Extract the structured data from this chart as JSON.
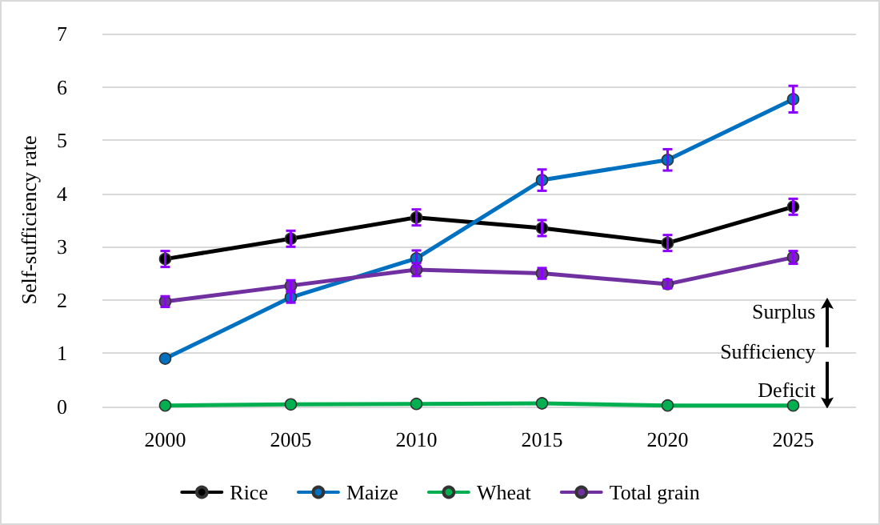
{
  "chart_data": {
    "type": "line",
    "ylabel": "Self-sufficiency rate",
    "categories": [
      "2000",
      "2005",
      "2010",
      "2015",
      "2020",
      "2025"
    ],
    "series": [
      {
        "name": "Rice",
        "color": "#000000",
        "values": [
          2.77,
          3.15,
          3.55,
          3.35,
          3.07,
          3.75
        ],
        "errors": [
          0.15,
          0.15,
          0.15,
          0.15,
          0.15,
          0.15
        ]
      },
      {
        "name": "Maize",
        "color": "#0070c0",
        "values": [
          0.9,
          2.05,
          2.78,
          4.25,
          4.63,
          5.77
        ],
        "errors": [
          null,
          0.1,
          0.15,
          0.2,
          0.2,
          0.25
        ]
      },
      {
        "name": "Wheat",
        "color": "#00b050",
        "values": [
          0.02,
          0.04,
          0.05,
          0.06,
          0.02,
          0.02
        ]
      },
      {
        "name": "Total grain",
        "color": "#7030a0",
        "values": [
          1.97,
          2.27,
          2.57,
          2.5,
          2.3,
          2.8
        ],
        "errors": [
          0.1,
          0.1,
          0.12,
          0.1,
          0.08,
          0.12
        ]
      }
    ],
    "ylim": [
      0,
      7
    ],
    "yticks": [
      0,
      1,
      2,
      3,
      4,
      5,
      6,
      7
    ],
    "grid": "y",
    "legend": "bottom",
    "marker": "circle",
    "line_style": "solid",
    "annotations": [
      "Surplus",
      "Sufficiency",
      "Deficit"
    ]
  }
}
